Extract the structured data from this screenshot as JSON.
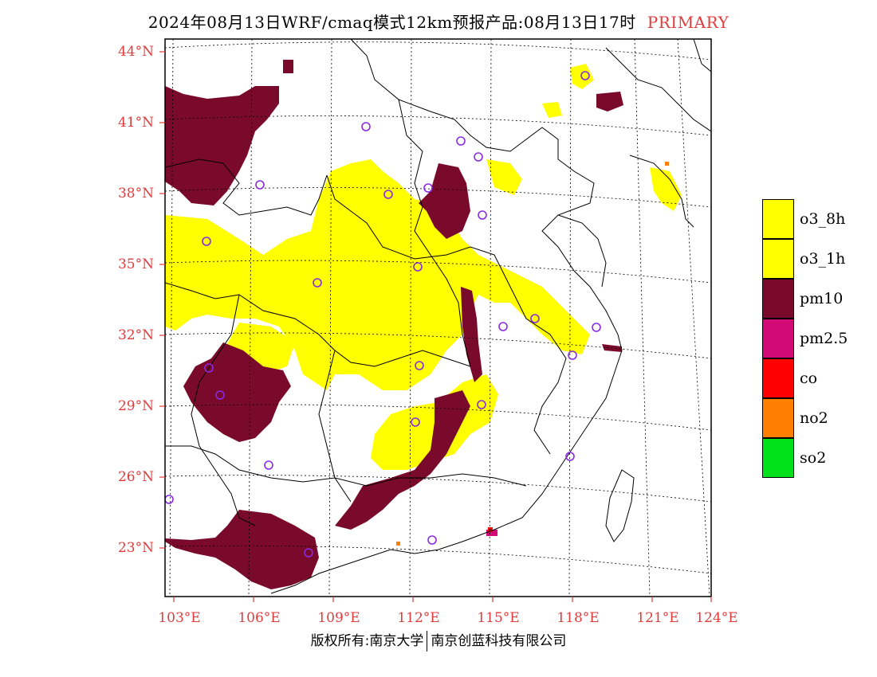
{
  "title": {
    "main": "2024年08月13日WRF/cmaq模式12km预报产品:08月13日17时",
    "tag": "PRIMARY"
  },
  "axes": {
    "lat_labels": [
      "44°N",
      "41°N",
      "38°N",
      "35°N",
      "32°N",
      "29°N",
      "26°N",
      "23°N"
    ],
    "lon_labels": [
      "103°E",
      "106°E",
      "109°E",
      "112°E",
      "115°E",
      "118°E",
      "121°E",
      "124°E"
    ]
  },
  "legend": [
    {
      "label": "o3_8h",
      "color": "#ffff00"
    },
    {
      "label": "o3_1h",
      "color": "#ffff00"
    },
    {
      "label": "pm10",
      "color": "#7a0a2c"
    },
    {
      "label": "pm2.5",
      "color": "#d10a78"
    },
    {
      "label": "co",
      "color": "#ff0000"
    },
    {
      "label": "no2",
      "color": "#ff7f00"
    },
    {
      "label": "so2",
      "color": "#00e01b"
    }
  ],
  "footer": {
    "left": "版权所有:南京大学",
    "right": "南京创蓝科技有限公司"
  },
  "colors": {
    "accent": "#e03c3c",
    "station_marker": "#8a2be2"
  }
}
